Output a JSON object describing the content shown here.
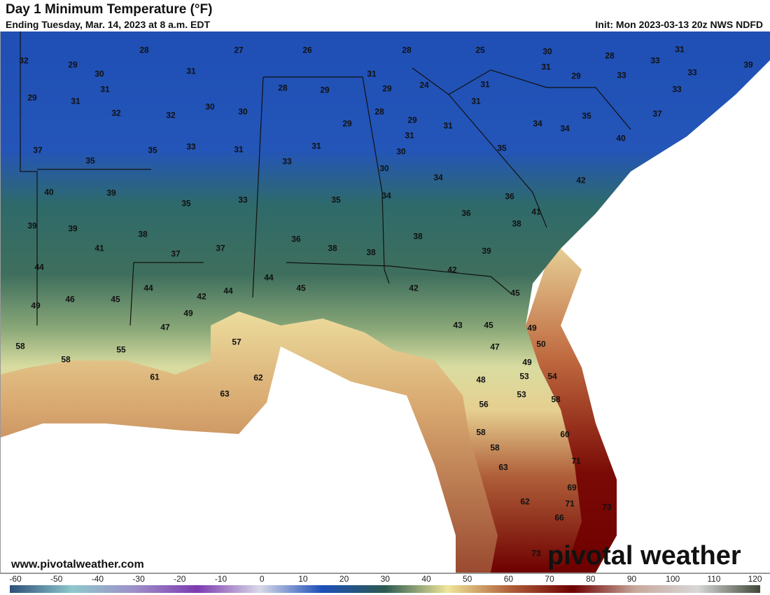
{
  "header": {
    "title": "Day 1 Minimum Temperature (°F)",
    "subtitle": "Ending Tuesday, Mar. 14, 2023 at 8 a.m. EDT",
    "init": "Init: Mon 2023-03-13 20z NWS NDFD"
  },
  "footer": {
    "website": "www.pivotalweather.com",
    "logo": "pivotal weather"
  },
  "colorbar": {
    "ticks": [
      "-60",
      "-50",
      "-40",
      "-30",
      "-20",
      "-10",
      "0",
      "10",
      "20",
      "30",
      "40",
      "50",
      "60",
      "70",
      "80",
      "90",
      "100",
      "110",
      "120"
    ],
    "colors": [
      "#2d4f7a",
      "#8fc8cc",
      "#9e8fc9",
      "#7d3ab0",
      "#d9d9e8",
      "#1c4fb8",
      "#2d5a50",
      "#efe69a",
      "#b0603a",
      "#6e0000",
      "#c8a89c",
      "#d8d8d8",
      "#404838"
    ]
  },
  "temperatures": [
    "32",
    "29",
    "28",
    "27",
    "26",
    "28",
    "25",
    "30",
    "28",
    "31",
    "33",
    "33",
    "39",
    "30",
    "31",
    "31",
    "29",
    "24",
    "31",
    "31",
    "29",
    "33",
    "33",
    "29",
    "31",
    "31",
    "28",
    "29",
    "31",
    "32",
    "32",
    "30",
    "30",
    "28",
    "29",
    "31",
    "35",
    "37",
    "29",
    "31",
    "34",
    "34",
    "37",
    "35",
    "33",
    "31",
    "31",
    "30",
    "35",
    "40",
    "35",
    "33",
    "30",
    "42",
    "40",
    "39",
    "34",
    "36",
    "35",
    "33",
    "35",
    "34",
    "41",
    "36",
    "39",
    "39",
    "38",
    "38",
    "38",
    "41",
    "37",
    "37",
    "36",
    "38",
    "38",
    "39",
    "44",
    "42",
    "44",
    "44",
    "42",
    "45",
    "45",
    "46",
    "45",
    "42",
    "44",
    "49",
    "49",
    "47",
    "43",
    "45",
    "49",
    "57",
    "50",
    "47",
    "58",
    "55",
    "58",
    "49",
    "53",
    "54",
    "48",
    "61",
    "62",
    "53",
    "58",
    "63",
    "56",
    "58",
    "60",
    "58",
    "71",
    "63",
    "69",
    "62",
    "71",
    "73",
    "66",
    "73"
  ]
}
